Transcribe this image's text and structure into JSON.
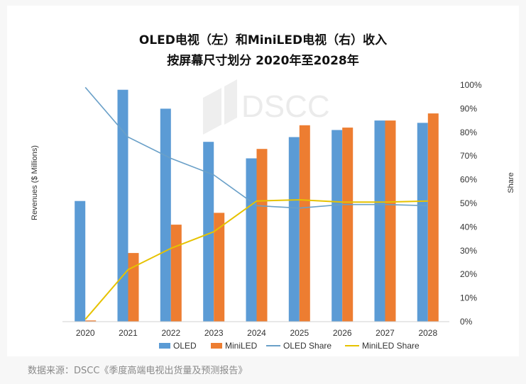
{
  "chart_data": {
    "type": "bar",
    "title": "OLED电视（左）和MiniLED电视（右）收入",
    "subtitle": "按屏幕尺寸划分 2020年至2028年",
    "watermark": "DSCC",
    "ylabel": "Revenues ($ Millions)",
    "y2label": "Share",
    "categories": [
      "2020",
      "2021",
      "2022",
      "2023",
      "2024",
      "2025",
      "2026",
      "2027",
      "2028"
    ],
    "series": [
      {
        "name": "OLED",
        "kind": "bar",
        "axis": "left",
        "color": "#5b9bd5",
        "values": [
          0.51,
          0.98,
          0.9,
          0.76,
          0.69,
          0.78,
          0.81,
          0.85,
          0.84
        ]
      },
      {
        "name": "MiniLED",
        "kind": "bar",
        "axis": "left",
        "color": "#ed7d31",
        "values": [
          0.005,
          0.29,
          0.41,
          0.46,
          0.73,
          0.83,
          0.82,
          0.85,
          0.88
        ]
      },
      {
        "name": "OLED Share",
        "kind": "line",
        "axis": "right",
        "color": "#6aa0c8",
        "values": [
          99,
          78,
          69,
          62,
          49,
          48,
          49.5,
          49.5,
          49
        ]
      },
      {
        "name": "MiniLED Share",
        "kind": "line",
        "axis": "right",
        "color": "#e6c200",
        "values": [
          1,
          22,
          31,
          38,
          51,
          51.5,
          50.5,
          50.5,
          51
        ]
      }
    ],
    "y2lim": [
      0,
      100
    ],
    "y2ticks": [
      "0%",
      "10%",
      "20%",
      "30%",
      "40%",
      "50%",
      "60%",
      "70%",
      "80%",
      "90%",
      "100%"
    ],
    "legend": "bottom",
    "grid": false
  },
  "source": "数据来源：DSCC《季度高端电视出货量及预测报告》"
}
